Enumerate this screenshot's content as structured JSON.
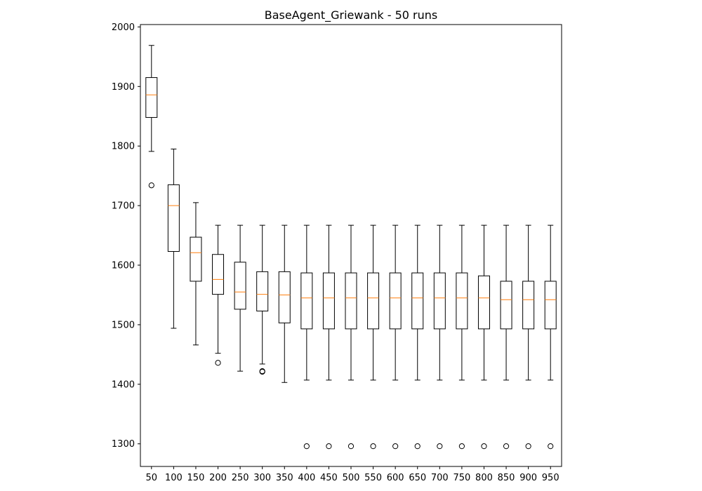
{
  "chart_data": {
    "type": "boxplot",
    "title": "BaseAgent_Griewank - 50 runs",
    "xlabel": "",
    "ylabel": "",
    "categories": [
      "50",
      "100",
      "150",
      "200",
      "250",
      "300",
      "350",
      "400",
      "450",
      "500",
      "550",
      "600",
      "650",
      "700",
      "750",
      "800",
      "850",
      "900",
      "950"
    ],
    "yticks": [
      1300,
      1400,
      1500,
      1600,
      1700,
      1800,
      1900,
      2000
    ],
    "ylim": [
      1262,
      2004
    ],
    "grid": false,
    "legend": "none",
    "colors": {
      "box": "#000000",
      "median": "#ff7f0e",
      "outlier": "#000000"
    },
    "boxes": [
      {
        "whisker_low": 1791,
        "q1": 1848,
        "median": 1886,
        "q3": 1915,
        "whisker_high": 1969,
        "outliers": [
          1734
        ]
      },
      {
        "whisker_low": 1494,
        "q1": 1623,
        "median": 1700,
        "q3": 1735,
        "whisker_high": 1795,
        "outliers": []
      },
      {
        "whisker_low": 1466,
        "q1": 1573,
        "median": 1621,
        "q3": 1647,
        "whisker_high": 1705,
        "outliers": []
      },
      {
        "whisker_low": 1452,
        "q1": 1551,
        "median": 1576,
        "q3": 1618,
        "whisker_high": 1667,
        "outliers": [
          1436
        ]
      },
      {
        "whisker_low": 1422,
        "q1": 1526,
        "median": 1555,
        "q3": 1605,
        "whisker_high": 1667,
        "outliers": []
      },
      {
        "whisker_low": 1434,
        "q1": 1523,
        "median": 1551,
        "q3": 1589,
        "whisker_high": 1667,
        "outliers": [
          1421,
          1422
        ]
      },
      {
        "whisker_low": 1403,
        "q1": 1503,
        "median": 1550,
        "q3": 1589,
        "whisker_high": 1667,
        "outliers": []
      },
      {
        "whisker_low": 1407,
        "q1": 1493,
        "median": 1545,
        "q3": 1587,
        "whisker_high": 1667,
        "outliers": [
          1296
        ]
      },
      {
        "whisker_low": 1407,
        "q1": 1493,
        "median": 1545,
        "q3": 1587,
        "whisker_high": 1667,
        "outliers": [
          1296
        ]
      },
      {
        "whisker_low": 1407,
        "q1": 1493,
        "median": 1545,
        "q3": 1587,
        "whisker_high": 1667,
        "outliers": [
          1296
        ]
      },
      {
        "whisker_low": 1407,
        "q1": 1493,
        "median": 1545,
        "q3": 1587,
        "whisker_high": 1667,
        "outliers": [
          1296
        ]
      },
      {
        "whisker_low": 1407,
        "q1": 1493,
        "median": 1545,
        "q3": 1587,
        "whisker_high": 1667,
        "outliers": [
          1296
        ]
      },
      {
        "whisker_low": 1407,
        "q1": 1493,
        "median": 1545,
        "q3": 1587,
        "whisker_high": 1667,
        "outliers": [
          1296
        ]
      },
      {
        "whisker_low": 1407,
        "q1": 1493,
        "median": 1545,
        "q3": 1587,
        "whisker_high": 1667,
        "outliers": [
          1296
        ]
      },
      {
        "whisker_low": 1407,
        "q1": 1493,
        "median": 1545,
        "q3": 1587,
        "whisker_high": 1667,
        "outliers": [
          1296
        ]
      },
      {
        "whisker_low": 1407,
        "q1": 1493,
        "median": 1545,
        "q3": 1582,
        "whisker_high": 1667,
        "outliers": [
          1296
        ]
      },
      {
        "whisker_low": 1407,
        "q1": 1493,
        "median": 1542,
        "q3": 1573,
        "whisker_high": 1667,
        "outliers": [
          1296
        ]
      },
      {
        "whisker_low": 1407,
        "q1": 1493,
        "median": 1542,
        "q3": 1573,
        "whisker_high": 1667,
        "outliers": [
          1296
        ]
      },
      {
        "whisker_low": 1407,
        "q1": 1493,
        "median": 1542,
        "q3": 1573,
        "whisker_high": 1667,
        "outliers": [
          1296
        ]
      }
    ]
  }
}
